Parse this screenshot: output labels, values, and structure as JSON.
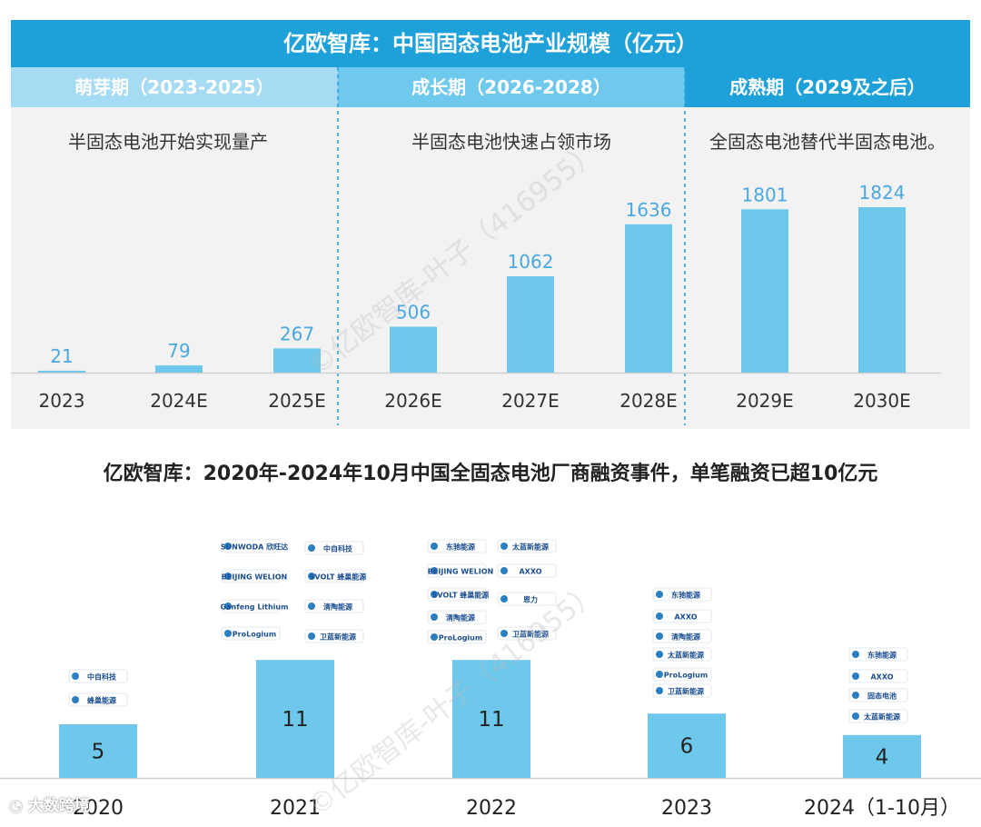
{
  "top": {
    "title": "亿欧智库：中国固态电池产业规模（亿元）",
    "phases": [
      {
        "name": "萌芽期（2023-2025）",
        "subtitle": "半固态电池开始实现量产"
      },
      {
        "name": "成长期（2026-2028）",
        "subtitle": "半固态电池快速占领市场"
      },
      {
        "name": "成熟期（2029及之后）",
        "subtitle": "全固态电池替代半固态电池。"
      }
    ]
  },
  "bottom": {
    "title": "亿欧智库：2020年-2024年10月中国全固态电池厂商融资事件，单笔融资已超10亿元"
  },
  "watermark": "©亿欧智库-叶子（416955）",
  "footer_mark": "大数跨境",
  "colors": {
    "header": "#1da1d8",
    "phase_light": "#a6dcf3",
    "phase_mid": "#6ec9ec",
    "bar": "#6dc8ec",
    "label": "#4aa8de",
    "panel": "#f2f2f2"
  },
  "logos": {
    "2020": [
      "中自科技",
      "蜂巢能源"
    ],
    "2021": [
      "SUNWODA 欣旺达",
      "中自科技",
      "BEIJING WELION",
      "SVOLT 蜂巢能源",
      "Ganfeng Lithium",
      "清陶能源",
      "ProLogium",
      "卫蓝新能源"
    ],
    "2022": [
      "东驰能源",
      "太蓝新能源",
      "BEIJING WELION",
      "AXXO",
      "SVOLT 蜂巢能源",
      "恩力",
      "清陶能源",
      "ProLogium",
      "卫蓝新能源"
    ],
    "2023": [
      "东驰能源",
      "AXXO",
      "清陶能源",
      "太蓝新能源",
      "ProLogium",
      "卫蓝新能源"
    ],
    "2024": [
      "东驰能源",
      "AXXO",
      "固态电池",
      "太蓝新能源"
    ]
  },
  "chart_data": [
    {
      "type": "bar",
      "title": "亿欧智库：中国固态电池产业规模（亿元）",
      "categories": [
        "2023",
        "2024E",
        "2025E",
        "2026E",
        "2027E",
        "2028E",
        "2029E",
        "2030E"
      ],
      "values": [
        21,
        79,
        267,
        506,
        1062,
        1636,
        1801,
        1824
      ],
      "ylim": [
        0,
        2000
      ],
      "grid": false,
      "legend": "none"
    },
    {
      "type": "bar",
      "title": "亿欧智库：2020年-2024年10月中国全固态电池厂商融资事件，单笔融资已超10亿元",
      "categories": [
        "2020",
        "2021",
        "2022",
        "2023",
        "2024（1-10月）"
      ],
      "values": [
        5,
        11,
        11,
        6,
        4
      ],
      "ylim": [
        0,
        30
      ],
      "grid": false,
      "legend": "none"
    }
  ]
}
